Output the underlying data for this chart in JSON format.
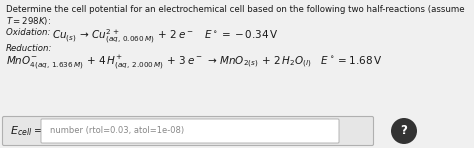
{
  "bg_color": "#f0f0f0",
  "text_color": "#1a1a1a",
  "line1": "Determine the cell potential for an electrochemical cell based on the following two half-reactions (assume",
  "line2": "$T = 298K$):",
  "ox_label": "Oxidation: ",
  "ox_eq": "$Cu_{(s)}\\,\\rightarrow\\,Cu^{2+}_{(aq,\\,0.060\\,M)}\\,+\\,2\\,e^-\\quad E^\\circ=-0.34\\,\\mathrm{V}$",
  "red_label": "Reduction:",
  "red_eq": "$MnO^{-}_{4(aq,\\,1.636\\,M)}\\,+\\,4\\,H^{+}_{(aq,\\,2.000\\,M)}\\,+\\,3\\,e^-\\,\\rightarrow\\,MnO_{2(s)}\\,+\\,2\\,H_2O_{(l)}\\quad E^\\circ=1.68\\,\\mathrm{V}$",
  "ecell_label": "$E_{cell}$",
  "equals": "=",
  "placeholder": "number (rtol=0.03, atol=1e-08)",
  "qmark": "?",
  "box_face": "#e6e6e6",
  "box_edge": "#b0b0b0",
  "input_face": "#ffffff",
  "input_edge": "#aaaaaa",
  "circle_color": "#333333"
}
